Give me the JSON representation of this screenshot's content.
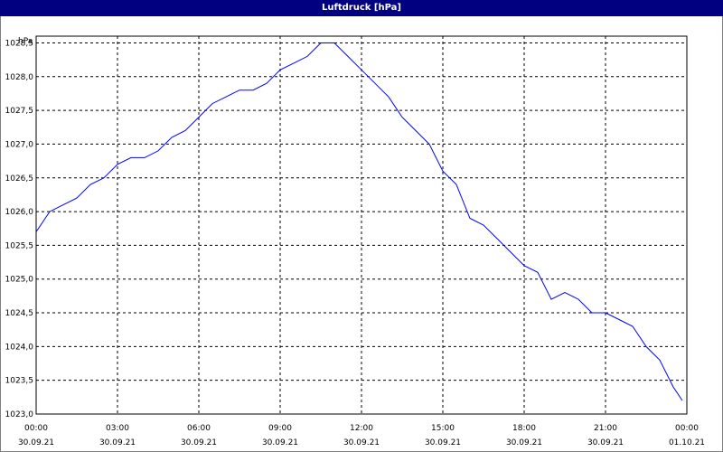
{
  "window": {
    "title": "Luftdruck [hPa]"
  },
  "colors": {
    "titlebar": "#000080",
    "line": "#0000ff",
    "grid": "#000000",
    "background": "#ffffff"
  },
  "chart_data": {
    "type": "line",
    "title": "Luftdruck [hPa]",
    "ylabel": "hPa",
    "xlabel": "",
    "grid": true,
    "ylim": [
      1023.0,
      1028.6
    ],
    "y_ticks": [
      "1023,0",
      "1023,5",
      "1024,0",
      "1024,5",
      "1025,0",
      "1025,5",
      "1026,0",
      "1026,5",
      "1027,0",
      "1027,5",
      "1028,0",
      "1028,5"
    ],
    "x_ticks": [
      {
        "time": "00:00",
        "date": "30.09.21"
      },
      {
        "time": "03:00",
        "date": "30.09.21"
      },
      {
        "time": "06:00",
        "date": "30.09.21"
      },
      {
        "time": "09:00",
        "date": "30.09.21"
      },
      {
        "time": "12:00",
        "date": "30.09.21"
      },
      {
        "time": "15:00",
        "date": "30.09.21"
      },
      {
        "time": "18:00",
        "date": "30.09.21"
      },
      {
        "time": "21:00",
        "date": "30.09.21"
      },
      {
        "time": "00:00",
        "date": "01.10.21"
      }
    ],
    "series": [
      {
        "x": [
          "00:00",
          "00:30",
          "01:00",
          "01:30",
          "02:00",
          "02:30",
          "03:00",
          "03:30",
          "04:00",
          "04:30",
          "05:00",
          "05:30",
          "06:00",
          "06:30",
          "07:00",
          "07:30",
          "08:00",
          "08:30",
          "09:00",
          "09:30",
          "10:00",
          "10:30",
          "11:00",
          "11:30",
          "12:00",
          "12:30",
          "13:00",
          "13:30",
          "14:00",
          "14:30",
          "15:00",
          "15:30",
          "16:00",
          "16:30",
          "17:00",
          "17:30",
          "18:00",
          "18:30",
          "19:00",
          "19:30",
          "20:00",
          "20:30",
          "21:00",
          "21:30",
          "22:00",
          "22:30",
          "23:00",
          "23:30",
          "23:50"
        ],
        "values": [
          1025.7,
          1026.0,
          1026.1,
          1026.2,
          1026.4,
          1026.5,
          1026.7,
          1026.8,
          1026.8,
          1026.9,
          1027.1,
          1027.2,
          1027.4,
          1027.6,
          1027.7,
          1027.8,
          1027.8,
          1027.9,
          1028.1,
          1028.2,
          1028.3,
          1028.5,
          1028.5,
          1028.3,
          1028.1,
          1027.9,
          1027.7,
          1027.4,
          1027.2,
          1027.0,
          1026.6,
          1026.4,
          1025.9,
          1025.8,
          1025.6,
          1025.4,
          1025.2,
          1025.1,
          1024.7,
          1024.8,
          1024.7,
          1024.5,
          1024.5,
          1024.4,
          1024.3,
          1024.0,
          1023.8,
          1023.4,
          1023.2
        ]
      }
    ]
  }
}
